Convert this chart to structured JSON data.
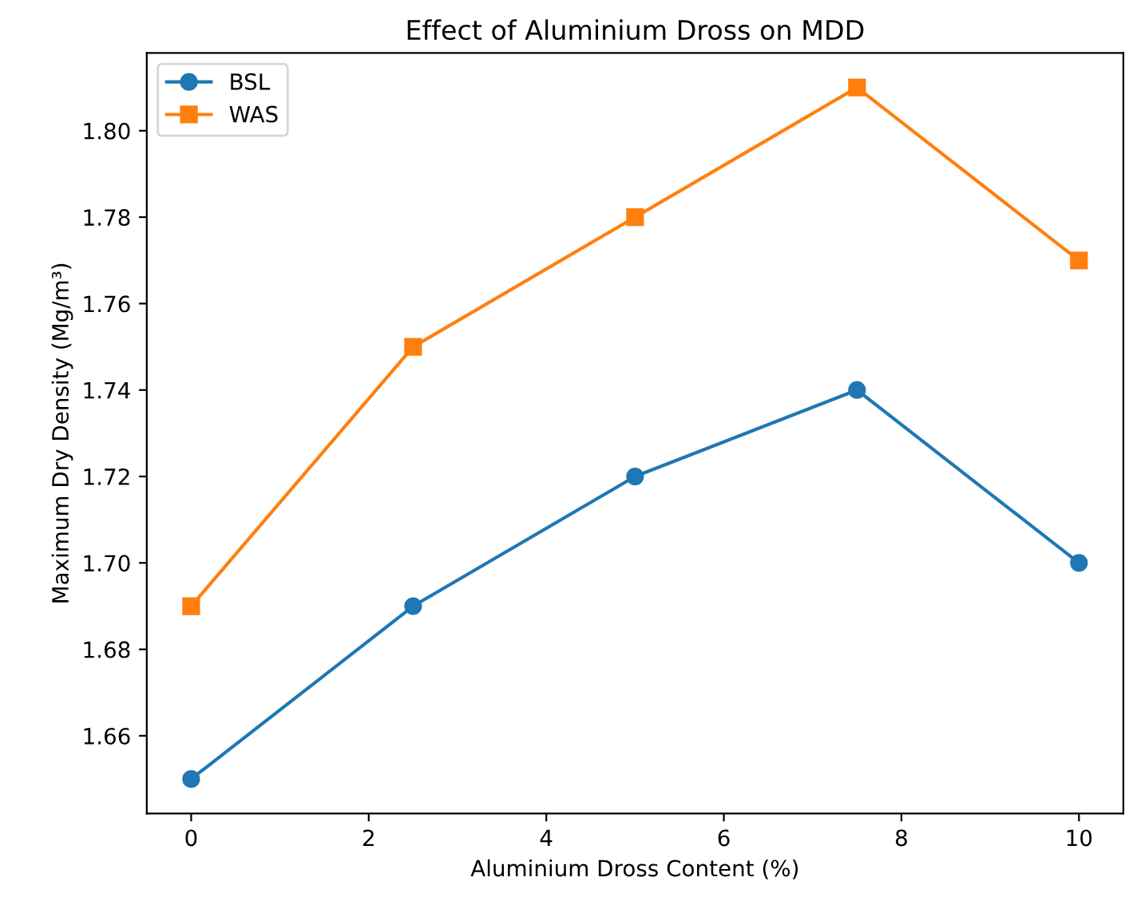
{
  "chart_data": {
    "type": "line",
    "title": "Effect of Aluminium Dross on MDD",
    "xlabel": "Aluminium Dross Content (%)",
    "ylabel": "Maximum Dry Density (Mg/m³)",
    "x": [
      0,
      2.5,
      5,
      7.5,
      10
    ],
    "series": [
      {
        "name": "BSL",
        "color": "#1f77b4",
        "marker": "circle",
        "values": [
          1.65,
          1.69,
          1.72,
          1.74,
          1.7
        ]
      },
      {
        "name": "WAS",
        "color": "#ff7f0e",
        "marker": "square",
        "values": [
          1.69,
          1.75,
          1.78,
          1.81,
          1.77
        ]
      }
    ],
    "xlim": [
      -0.5,
      10.5
    ],
    "xticks": [
      0,
      2,
      4,
      6,
      8,
      10
    ],
    "ylim": [
      1.642,
      1.818
    ],
    "yticks": [
      {
        "value": 1.66,
        "label": "1.66"
      },
      {
        "value": 1.68,
        "label": "1.68"
      },
      {
        "value": 1.7,
        "label": "1.70"
      },
      {
        "value": 1.72,
        "label": "1.72"
      },
      {
        "value": 1.74,
        "label": "1.74"
      },
      {
        "value": 1.76,
        "label": "1.76"
      },
      {
        "value": 1.78,
        "label": "1.78"
      },
      {
        "value": 1.8,
        "label": "1.80"
      }
    ],
    "legend": "top left",
    "grid": false,
    "line_style": "solid"
  }
}
